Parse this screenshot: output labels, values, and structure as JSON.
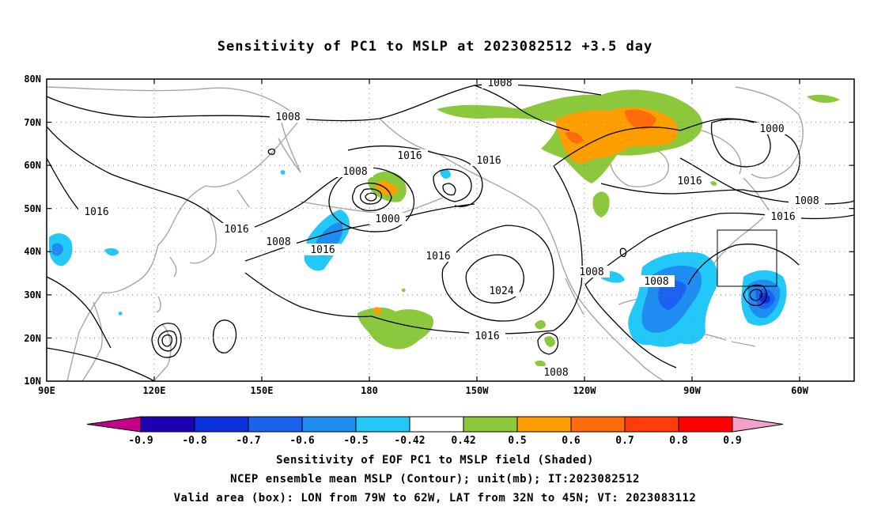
{
  "title": "Sensitivity of PC1 to MSLP at 2023082512 +3.5 day",
  "axes": {
    "lat_labels": [
      "80N",
      "70N",
      "60N",
      "50N",
      "40N",
      "30N",
      "20N",
      "10N"
    ],
    "lon_labels": [
      "90E",
      "120E",
      "150E",
      "180",
      "150W",
      "120W",
      "90W",
      "60W"
    ]
  },
  "contour_labels": [
    "1008",
    "1008",
    "1000",
    "1016",
    "1016",
    "1016",
    "1008",
    "1016",
    "1000",
    "1016",
    "1008",
    "1016",
    "1016",
    "1024",
    "1008",
    "1008",
    "1016",
    "1008",
    "1008",
    "1016"
  ],
  "colorbar": {
    "ticks": [
      "-0.9",
      "-0.8",
      "-0.7",
      "-0.6",
      "-0.5",
      "-0.42",
      "0.42",
      "0.5",
      "0.6",
      "0.7",
      "0.8",
      "0.9"
    ],
    "colors": [
      "#c6008a",
      "#1e00b4",
      "#0a30dc",
      "#1a62f0",
      "#1e8cf0",
      "#22c8f8",
      "#ffffff",
      "#8cc83c",
      "#ff9e00",
      "#ff6a0a",
      "#ff3c0a",
      "#ff0000",
      "#f5a0c8"
    ]
  },
  "valid_box": {
    "lon_from": "79W",
    "lon_to": "62W",
    "lat_from": "32N",
    "lat_to": "45N"
  },
  "caption": {
    "line1": "Sensitivity of EOF PC1 to MSLP field (Shaded)",
    "line2": "NCEP ensemble mean MSLP (Contour); unit(mb); IT:2023082512",
    "line3": "Valid area (box): LON from 79W to 62W, LAT from 32N to 45N; VT: 2023083112"
  }
}
